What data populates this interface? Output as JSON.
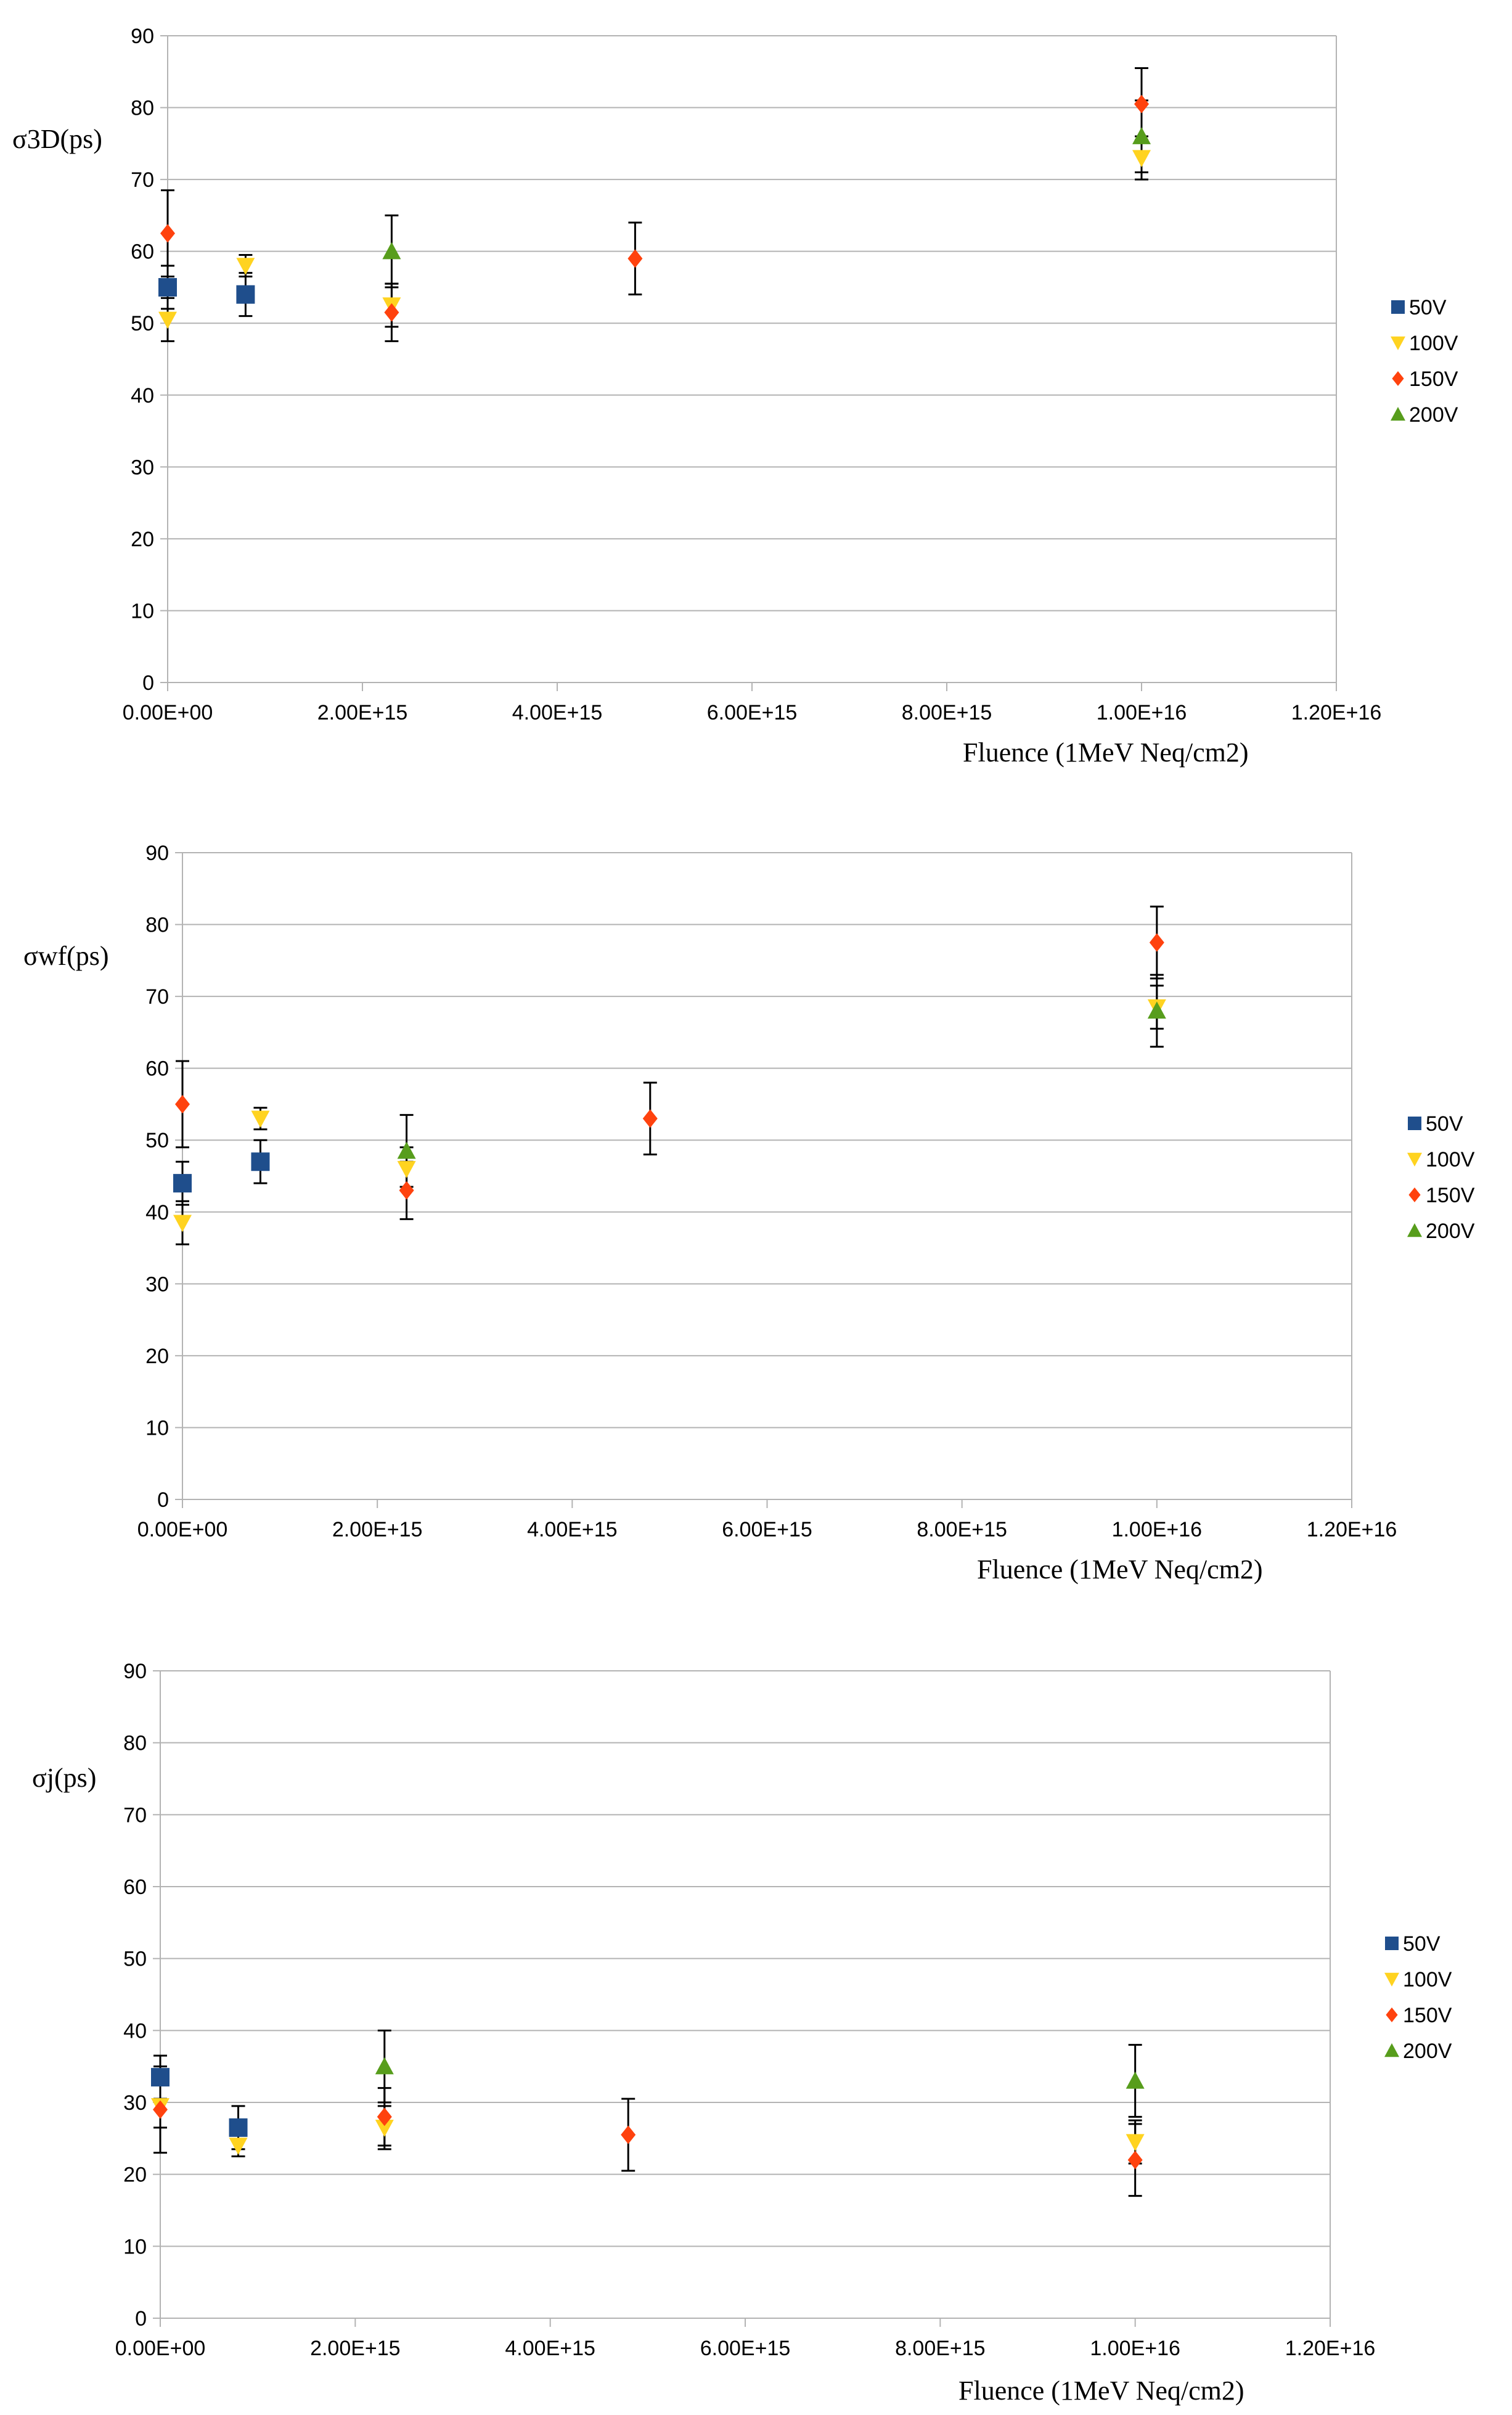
{
  "charts": [
    {
      "ylabel": "σ3D(ps)",
      "xlabel": "Fluence  (1MeV  Neq/cm2)",
      "legend": [
        "50V",
        "100V",
        "150V",
        "200V"
      ]
    },
    {
      "ylabel": "σwf(ps)",
      "xlabel": "Fluence  (1MeV  Neq/cm2)",
      "legend": [
        "50V",
        "100V",
        "150V",
        "200V"
      ]
    },
    {
      "ylabel": "σj(ps)",
      "xlabel": "Fluence  (1MeV  Neq/cm2)",
      "legend": [
        "50V",
        "100V",
        "150V",
        "200V"
      ]
    }
  ],
  "colors": {
    "50V": "#1f4e8c",
    "100V": "#ffd320",
    "150V": "#ff420e",
    "200V": "#579d1c",
    "grid": "#b3b3b3",
    "errorbar": "#000000"
  },
  "chart_data": [
    {
      "type": "scatter",
      "xlabel": "Fluence  (1MeV  Neq/cm2)",
      "ylabel": "σ3D(ps)",
      "xlim": [
        0,
        1.2e+16
      ],
      "ylim": [
        0,
        90
      ],
      "xticks": [
        "0.00E+00",
        "2.00E+15",
        "4.00E+15",
        "6.00E+15",
        "8.00E+15",
        "1.00E+16",
        "1.20E+16"
      ],
      "yticks": [
        "0",
        "10",
        "20",
        "30",
        "40",
        "50",
        "60",
        "70",
        "80",
        "90"
      ],
      "grid": true,
      "legend_position": "right",
      "series": [
        {
          "name": "50V",
          "marker": "square",
          "points": [
            {
              "x": 0,
              "y": 55,
              "err": 3
            },
            {
              "x": 800000000000000.0,
              "y": 54,
              "err": 3
            }
          ]
        },
        {
          "name": "100V",
          "marker": "triangle-down",
          "points": [
            {
              "x": 0,
              "y": 50.5,
              "err": 3
            },
            {
              "x": 800000000000000.0,
              "y": 58,
              "err": 1.5
            },
            {
              "x": 2300000000000000.0,
              "y": 52.5,
              "err": 3
            },
            {
              "x": 1e+16,
              "y": 73,
              "err": 3
            }
          ]
        },
        {
          "name": "150V",
          "marker": "diamond",
          "points": [
            {
              "x": 0,
              "y": 62.5,
              "err": 6
            },
            {
              "x": 2300000000000000.0,
              "y": 51.5,
              "err": 4
            },
            {
              "x": 4800000000000000.0,
              "y": 59,
              "err": 5
            },
            {
              "x": 1e+16,
              "y": 80.5,
              "err": 5
            }
          ]
        },
        {
          "name": "200V",
          "marker": "triangle-up",
          "points": [
            {
              "x": 2300000000000000.0,
              "y": 60,
              "err": 5
            },
            {
              "x": 1e+16,
              "y": 76,
              "err": 5
            }
          ]
        }
      ]
    },
    {
      "type": "scatter",
      "xlabel": "Fluence  (1MeV  Neq/cm2)",
      "ylabel": "σwf(ps)",
      "xlim": [
        0,
        1.2e+16
      ],
      "ylim": [
        0,
        90
      ],
      "xticks": [
        "0.00E+00",
        "2.00E+15",
        "4.00E+15",
        "6.00E+15",
        "8.00E+15",
        "1.00E+16",
        "1.20E+16"
      ],
      "yticks": [
        "0",
        "10",
        "20",
        "30",
        "40",
        "50",
        "60",
        "70",
        "80",
        "90"
      ],
      "grid": true,
      "legend_position": "right",
      "series": [
        {
          "name": "50V",
          "marker": "square",
          "points": [
            {
              "x": 0,
              "y": 44,
              "err": 3
            },
            {
              "x": 800000000000000.0,
              "y": 47,
              "err": 3
            }
          ]
        },
        {
          "name": "100V",
          "marker": "triangle-down",
          "points": [
            {
              "x": 0,
              "y": 38.5,
              "err": 3
            },
            {
              "x": 800000000000000.0,
              "y": 53,
              "err": 1.5
            },
            {
              "x": 2300000000000000.0,
              "y": 46,
              "err": 3
            },
            {
              "x": 1e+16,
              "y": 68.5,
              "err": 3
            }
          ]
        },
        {
          "name": "150V",
          "marker": "diamond",
          "points": [
            {
              "x": 0,
              "y": 55,
              "err": 6
            },
            {
              "x": 2300000000000000.0,
              "y": 43,
              "err": 4
            },
            {
              "x": 4800000000000000.0,
              "y": 53,
              "err": 5
            },
            {
              "x": 1e+16,
              "y": 77.5,
              "err": 5
            }
          ]
        },
        {
          "name": "200V",
          "marker": "triangle-up",
          "points": [
            {
              "x": 2300000000000000.0,
              "y": 48.5,
              "err": 5
            },
            {
              "x": 1e+16,
              "y": 68,
              "err": 5
            }
          ]
        }
      ]
    },
    {
      "type": "scatter",
      "xlabel": "Fluence  (1MeV  Neq/cm2)",
      "ylabel": "σj(ps)",
      "xlim": [
        0,
        1.2e+16
      ],
      "ylim": [
        0,
        90
      ],
      "xticks": [
        "0.00E+00",
        "2.00E+15",
        "4.00E+15",
        "6.00E+15",
        "8.00E+15",
        "1.00E+16",
        "1.20E+16"
      ],
      "yticks": [
        "0",
        "10",
        "20",
        "30",
        "40",
        "50",
        "60",
        "70",
        "80",
        "90"
      ],
      "grid": true,
      "legend_position": "right",
      "series": [
        {
          "name": "50V",
          "marker": "square",
          "points": [
            {
              "x": 0,
              "y": 33.5,
              "err": 3
            },
            {
              "x": 800000000000000.0,
              "y": 26.5,
              "err": 3
            }
          ]
        },
        {
          "name": "100V",
          "marker": "triangle-down",
          "points": [
            {
              "x": 0,
              "y": 29.5,
              "err": 3
            },
            {
              "x": 800000000000000.0,
              "y": 24,
              "err": 1.5
            },
            {
              "x": 2300000000000000.0,
              "y": 26.5,
              "err": 3
            },
            {
              "x": 1e+16,
              "y": 24.5,
              "err": 3
            }
          ]
        },
        {
          "name": "150V",
          "marker": "diamond",
          "points": [
            {
              "x": 0,
              "y": 29,
              "err": 6
            },
            {
              "x": 2300000000000000.0,
              "y": 28,
              "err": 4
            },
            {
              "x": 4800000000000000.0,
              "y": 25.5,
              "err": 5
            },
            {
              "x": 1e+16,
              "y": 22,
              "err": 5
            }
          ]
        },
        {
          "name": "200V",
          "marker": "triangle-up",
          "points": [
            {
              "x": 2300000000000000.0,
              "y": 35,
              "err": 5
            },
            {
              "x": 1e+16,
              "y": 33,
              "err": 5
            }
          ]
        }
      ]
    }
  ]
}
